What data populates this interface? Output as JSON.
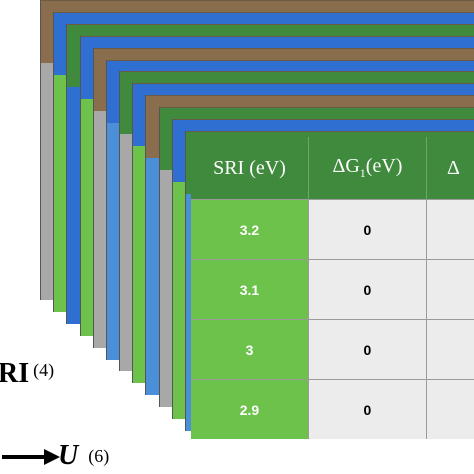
{
  "layers": {
    "header_colors": [
      "#8a6d4c",
      "#2f6fd1",
      "#3f8a3d",
      "#2f6fd1",
      "#8a6d4c",
      "#2f6fd1",
      "#3f8a3d",
      "#2f6fd1",
      "#8a6d4c",
      "#3f8a3d",
      "#2f6fd1",
      "#3f8a3d"
    ],
    "body_colors": [
      "#a8a8a8",
      "#6cc24a",
      "#2f6fd1",
      "#6cc24a",
      "#a8a8a8",
      "#4a8fd8",
      "#a8a8a8",
      "#6cc24a",
      "#4a8fd8",
      "#a8a8a8",
      "#6cc24a",
      "#4a8fd8"
    ]
  },
  "table": {
    "headers": [
      {
        "text": "SRI (eV)"
      },
      {
        "prefix": "ΔG",
        "sub": "1",
        "suffix": "(eV)"
      },
      {
        "text": "Δ"
      }
    ],
    "rows": [
      {
        "sri": "3.2",
        "dg1": "0",
        "dg2": ""
      },
      {
        "sri": "3.1",
        "dg1": "0",
        "dg2": ""
      },
      {
        "sri": "3",
        "dg1": "0",
        "dg2": ""
      },
      {
        "sri": "2.9",
        "dg1": "0",
        "dg2": ""
      }
    ]
  },
  "axes": {
    "sri": {
      "label": "RI",
      "count": "(4)"
    },
    "u": {
      "symbol": "U",
      "count": "(6)"
    }
  }
}
